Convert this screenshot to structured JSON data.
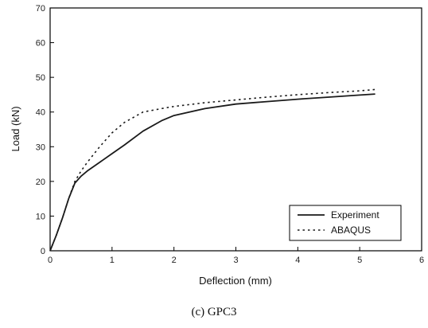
{
  "chart_data": {
    "type": "line",
    "title": "",
    "xlabel": "Deflection (mm)",
    "ylabel": "Load (kN)",
    "xlim": [
      0,
      6
    ],
    "ylim": [
      0,
      70
    ],
    "xticks": [
      0,
      1,
      2,
      3,
      4,
      5,
      6
    ],
    "yticks": [
      0,
      10,
      20,
      30,
      40,
      50,
      60,
      70
    ],
    "grid": false,
    "legend_position": "bottom-right",
    "series": [
      {
        "name": "Experiment",
        "style": "solid",
        "color": "#1a1a1a",
        "x": [
          0,
          0.1,
          0.2,
          0.3,
          0.4,
          0.5,
          0.6,
          0.8,
          1.0,
          1.2,
          1.5,
          1.8,
          2.0,
          2.5,
          3.0,
          3.5,
          4.0,
          4.5,
          5.0,
          5.25
        ],
        "y": [
          0,
          4.5,
          9.5,
          15.0,
          19.5,
          21.5,
          23.0,
          25.5,
          28.0,
          30.5,
          34.5,
          37.5,
          39.0,
          41.0,
          42.3,
          43.0,
          43.7,
          44.3,
          44.9,
          45.2
        ]
      },
      {
        "name": "ABAQUS",
        "style": "dotted",
        "color": "#1a1a1a",
        "x": [
          0,
          0.1,
          0.2,
          0.3,
          0.4,
          0.5,
          0.6,
          0.8,
          1.0,
          1.2,
          1.5,
          1.8,
          2.0,
          2.5,
          3.0,
          3.5,
          4.0,
          4.5,
          5.0,
          5.25
        ],
        "y": [
          0,
          4.5,
          9.5,
          15.0,
          20.0,
          23.0,
          25.5,
          30.0,
          34.0,
          37.0,
          40.0,
          41.0,
          41.6,
          42.7,
          43.5,
          44.3,
          45.0,
          45.6,
          46.1,
          46.5
        ]
      }
    ]
  },
  "caption": "(c) GPC3"
}
